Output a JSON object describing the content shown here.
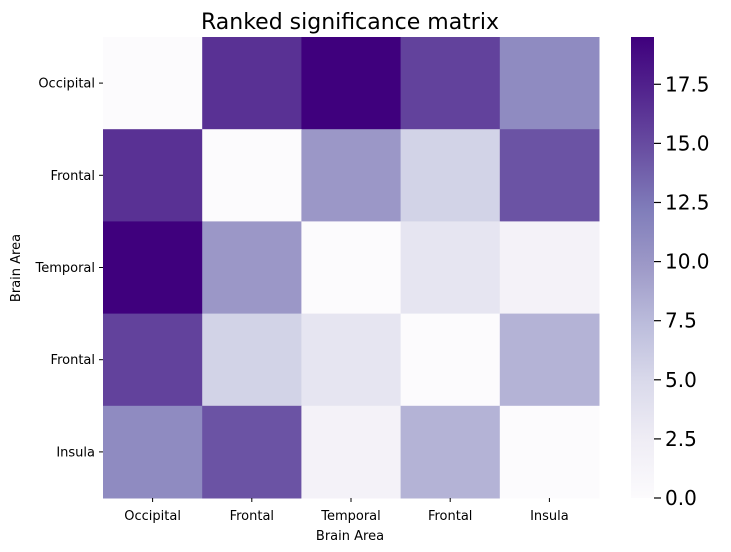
{
  "chart_data": {
    "type": "heatmap",
    "title": "Ranked significance matrix",
    "xlabel": "Brain Area",
    "ylabel": "Brain Area",
    "x_categories": [
      "Occipital",
      "Frontal",
      "Temporal",
      "Frontal",
      "Insula"
    ],
    "y_categories": [
      "Occipital",
      "Frontal",
      "Temporal",
      "Frontal",
      "Insula"
    ],
    "values": [
      [
        0.0,
        16.5,
        19.5,
        15.5,
        11.0
      ],
      [
        16.5,
        0.0,
        10.0,
        5.5,
        14.5
      ],
      [
        19.5,
        10.0,
        0.0,
        3.5,
        1.5
      ],
      [
        15.5,
        5.5,
        3.5,
        0.0,
        8.0
      ],
      [
        11.0,
        14.5,
        1.5,
        8.0,
        0.0
      ]
    ],
    "colormap": "Purples",
    "colorbar": {
      "range": [
        0,
        19.5
      ],
      "ticks": [
        0.0,
        2.5,
        5.0,
        7.5,
        10.0,
        12.5,
        15.0,
        17.5
      ],
      "tick_labels": [
        "0.0",
        "2.5",
        "5.0",
        "7.5",
        "10.0",
        "12.5",
        "15.0",
        "17.5"
      ]
    }
  }
}
